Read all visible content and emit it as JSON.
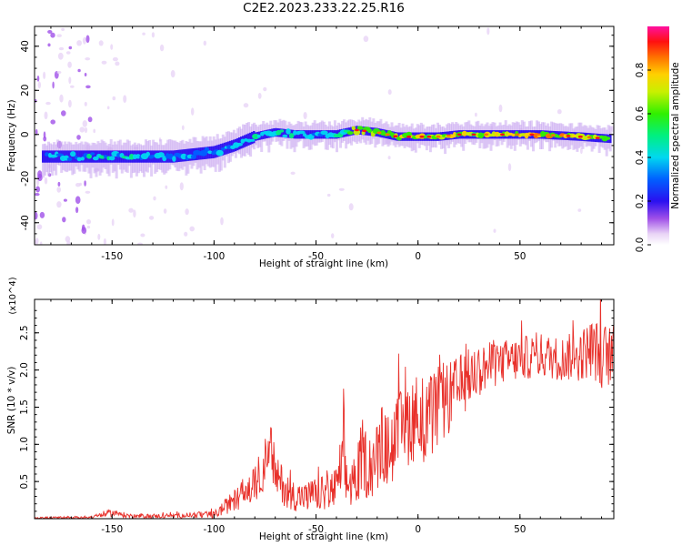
{
  "title": "C2E2.2023.233.22.25.R16",
  "colors": {
    "line": "#e8302a",
    "axis": "#000000",
    "background": "#ffffff"
  },
  "chart_data": [
    {
      "type": "heatmap",
      "title": "C2E2.2023.233.22.25.R16",
      "xlabel": "Height of straight line (km)",
      "ylabel": "Frequency (Hz)",
      "xlim": [
        -188,
        96
      ],
      "ylim": [
        -50,
        49
      ],
      "xticks": [
        -150,
        -100,
        -50,
        0,
        50
      ],
      "yticks": [
        -40,
        -20,
        0,
        20,
        40
      ],
      "grid": false,
      "colorbar": {
        "label": "Normalized spectral amplitude",
        "range": [
          0,
          1
        ],
        "ticks": [
          0.0,
          0.2,
          0.4,
          0.6,
          0.8
        ],
        "colormap": "rainbow (violet → blue → cyan → green → yellow → orange → red → magenta)"
      },
      "ridge": {
        "description": "frequency of strongest spectral band vs height",
        "x": [
          -180,
          -160,
          -140,
          -120,
          -100,
          -90,
          -80,
          -70,
          -60,
          -50,
          -40,
          -30,
          -20,
          -10,
          0,
          10,
          20,
          40,
          60,
          80,
          95
        ],
        "y": [
          -10,
          -10,
          -10,
          -10,
          -8,
          -5,
          -1,
          1,
          0,
          0,
          0,
          2,
          1,
          -1,
          -1,
          -1,
          0,
          0,
          0,
          -1,
          -2
        ],
        "amplitude": [
          0.45,
          0.5,
          0.5,
          0.45,
          0.42,
          0.45,
          0.55,
          0.55,
          0.5,
          0.5,
          0.55,
          0.75,
          0.8,
          0.78,
          0.8,
          0.78,
          0.75,
          0.8,
          0.85,
          0.85,
          0.85
        ]
      }
    },
    {
      "type": "line",
      "xlabel": "Height of straight line (km)",
      "ylabel": "SNR (10 * v/v)",
      "y_multiplier": "(x10^4)",
      "xlim": [
        -188,
        96
      ],
      "ylim": [
        0,
        2.95
      ],
      "xticks": [
        -150,
        -100,
        -50,
        0,
        50
      ],
      "yticks": [
        0.5,
        1.0,
        1.5,
        2.0,
        2.5
      ],
      "grid": false,
      "series": [
        {
          "x": [
            -188,
            -160,
            -150,
            -140,
            -120,
            -110,
            -100,
            -95,
            -90,
            -85,
            -80,
            -75,
            -72,
            -70,
            -65,
            -60,
            -55,
            -50,
            -45,
            -40,
            -37,
            -35,
            -30,
            -27,
            -25,
            -20,
            -18,
            -15,
            -10,
            -5,
            0,
            5,
            10,
            15,
            20,
            25,
            30,
            40,
            50,
            60,
            70,
            80,
            85,
            90,
            96
          ],
          "y": [
            0.01,
            0.02,
            0.08,
            0.03,
            0.04,
            0.05,
            0.05,
            0.15,
            0.25,
            0.35,
            0.45,
            0.75,
            0.9,
            0.6,
            0.4,
            0.3,
            0.3,
            0.32,
            0.35,
            0.4,
            0.8,
            0.45,
            0.55,
            0.9,
            0.7,
            0.8,
            1.0,
            0.9,
            1.1,
            1.3,
            1.4,
            1.3,
            1.5,
            1.6,
            1.75,
            1.9,
            2.0,
            2.1,
            2.15,
            2.2,
            2.15,
            2.2,
            2.3,
            2.2,
            2.2
          ],
          "noise_amplitude": [
            0.01,
            0.02,
            0.05,
            0.03,
            0.03,
            0.04,
            0.05,
            0.1,
            0.15,
            0.2,
            0.25,
            0.35,
            0.4,
            0.3,
            0.25,
            0.2,
            0.2,
            0.22,
            0.25,
            0.3,
            0.5,
            0.35,
            0.4,
            0.5,
            0.45,
            0.5,
            0.55,
            0.5,
            0.55,
            0.6,
            0.6,
            0.6,
            0.55,
            0.5,
            0.45,
            0.4,
            0.35,
            0.3,
            0.3,
            0.3,
            0.3,
            0.35,
            0.4,
            0.45,
            0.4
          ]
        }
      ]
    }
  ]
}
